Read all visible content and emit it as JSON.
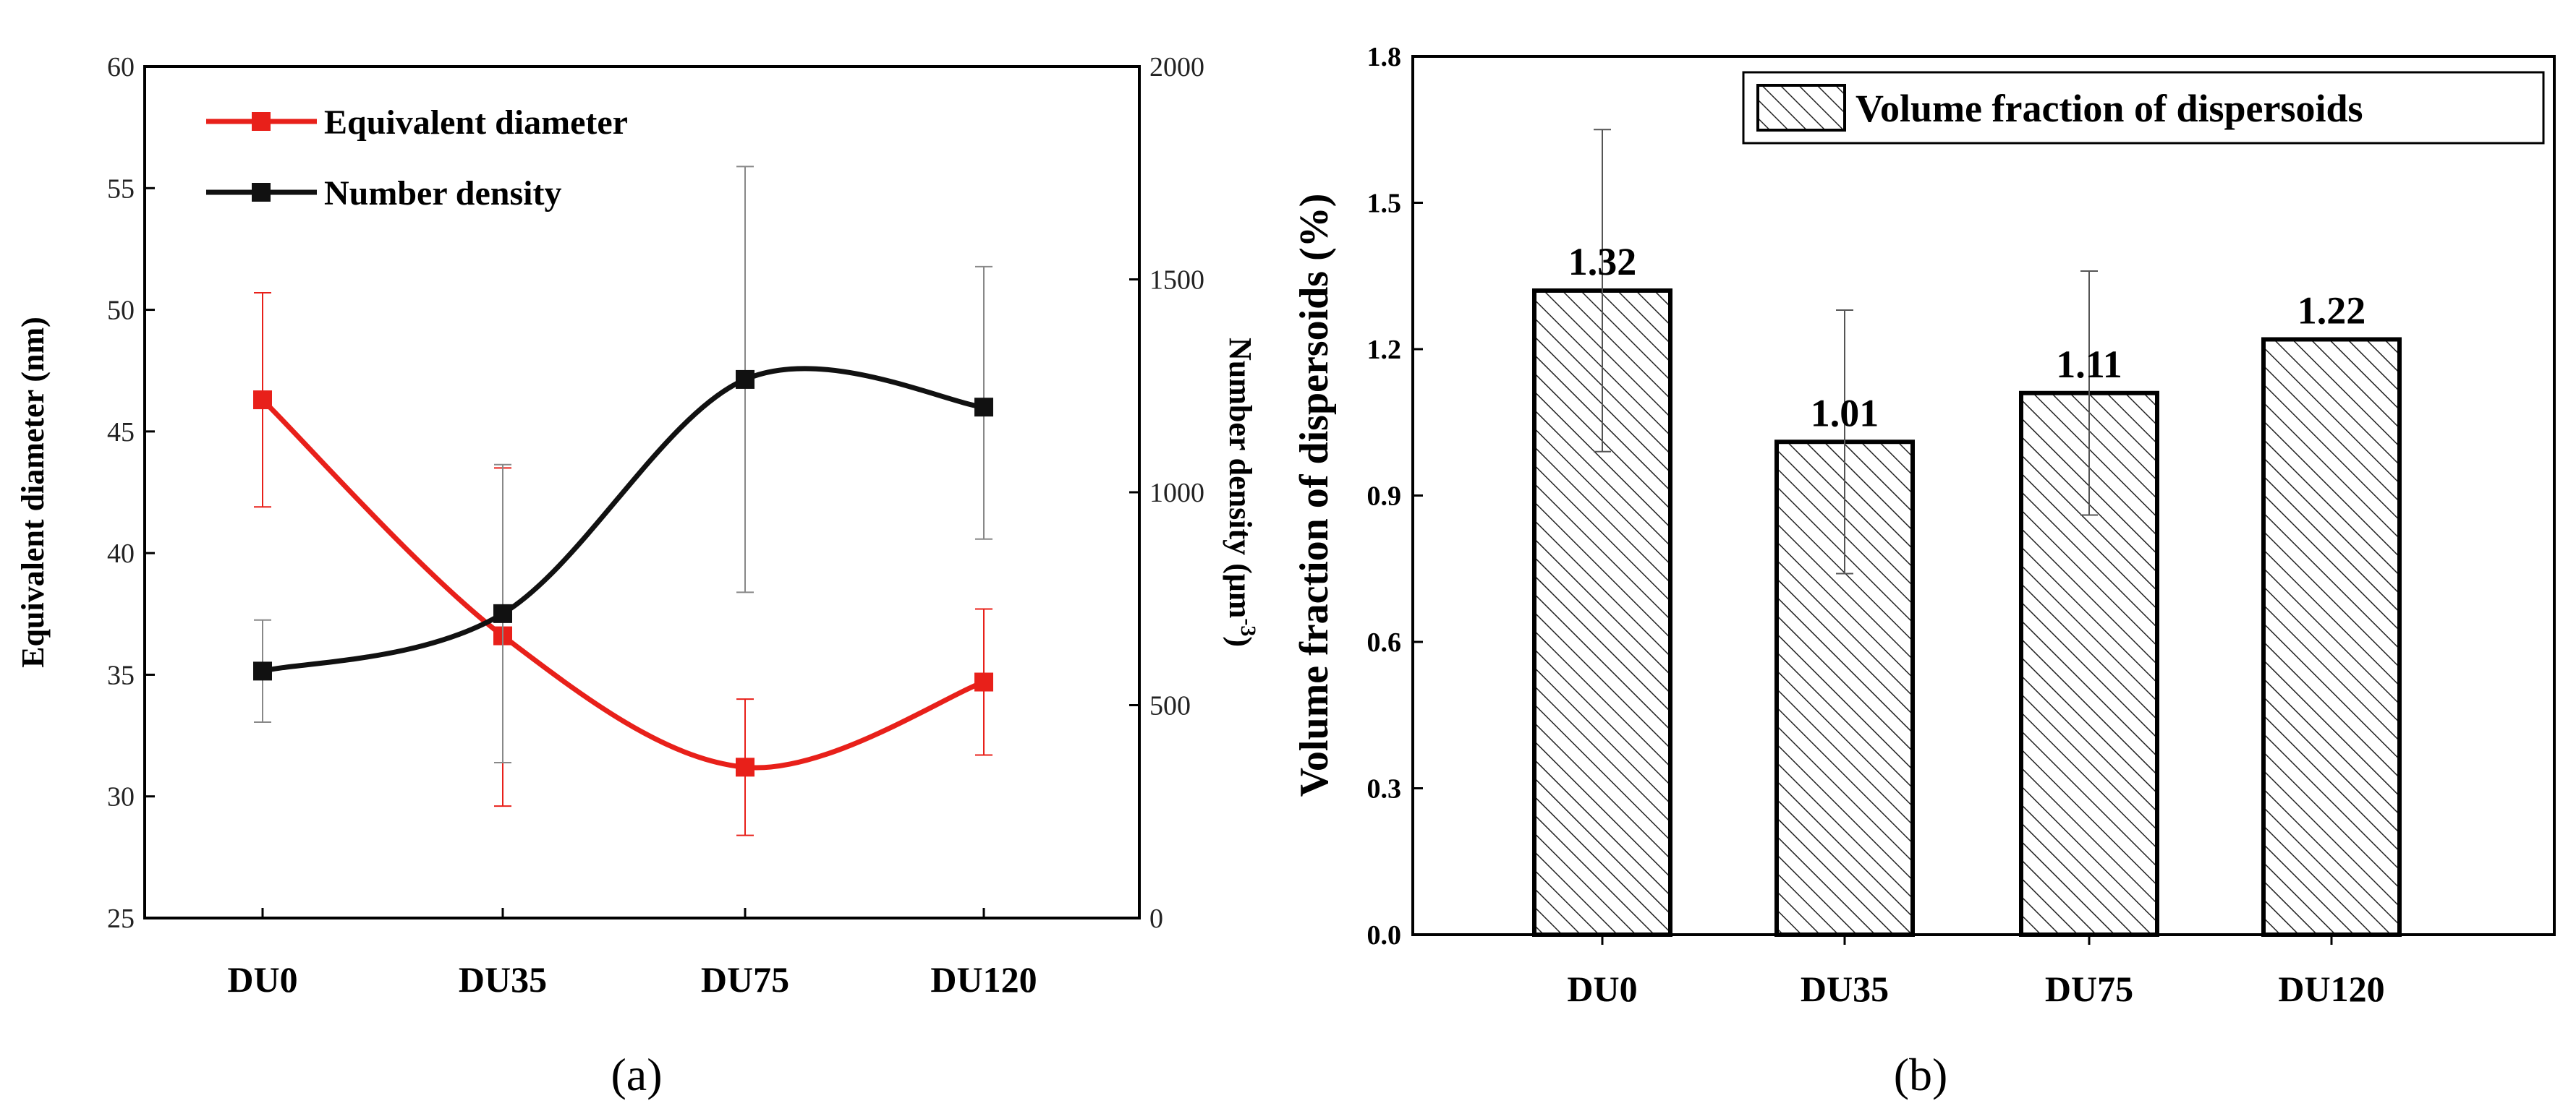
{
  "chart_data": [
    {
      "id": "a",
      "type": "line",
      "panel_label": "(a)",
      "categories": [
        "DU0",
        "DU35",
        "DU75",
        "DU120"
      ],
      "ylabel": "Equivalent diameter (nm)",
      "y2label_main": "Number density (μm",
      "y2label_sup": "-3",
      "y2label_close": ")",
      "ylim": [
        25,
        60
      ],
      "yticks": [
        "25",
        "30",
        "35",
        "40",
        "45",
        "50",
        "55",
        "60"
      ],
      "y2lim": [
        0,
        2000
      ],
      "y2ticks": [
        "0",
        "500",
        "1000",
        "1500",
        "2000"
      ],
      "legend_position": "top-left",
      "series": [
        {
          "name": "Equivalent diameter",
          "axis": "left",
          "color": "#e8201a",
          "values": [
            46.3,
            36.6,
            31.2,
            34.7
          ],
          "err_low": [
            41.9,
            29.6,
            28.4,
            31.7
          ],
          "err_high": [
            50.7,
            43.5,
            34.0,
            37.7
          ]
        },
        {
          "name": "Number density",
          "axis": "right",
          "color": "#111111",
          "values": [
            580,
            715,
            1265,
            1200
          ],
          "err_low": [
            460,
            365,
            765,
            890
          ],
          "err_high": [
            700,
            1065,
            1765,
            1530
          ]
        }
      ]
    },
    {
      "id": "b",
      "type": "bar",
      "panel_label": "(b)",
      "categories": [
        "DU0",
        "DU35",
        "DU75",
        "DU120"
      ],
      "values": [
        1.32,
        1.01,
        1.11,
        1.22
      ],
      "value_labels": [
        "1.32",
        "1.01",
        "1.11",
        "1.22"
      ],
      "err_low": [
        0.99,
        0.74,
        0.86,
        1.22
      ],
      "err_high": [
        1.65,
        1.28,
        1.36,
        1.22
      ],
      "ylabel": "Volume fraction of dispersoids (%)",
      "ylim": [
        0.0,
        1.8
      ],
      "yticks": [
        "0.0",
        "0.3",
        "0.6",
        "0.9",
        "1.2",
        "1.5",
        "1.8"
      ],
      "legend_label": "Volume fraction of dispersoids",
      "legend_position": "top-right"
    }
  ]
}
